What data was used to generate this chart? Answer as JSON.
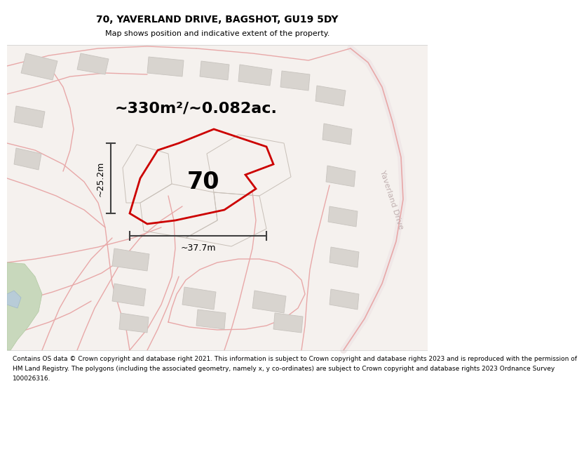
{
  "title": "70, YAVERLAND DRIVE, BAGSHOT, GU19 5DY",
  "subtitle": "Map shows position and indicative extent of the property.",
  "area_label": "~330m²/~0.082ac.",
  "number_label": "70",
  "width_label": "~37.7m",
  "height_label": "~25.2m",
  "footer_lines": [
    "Contains OS data © Crown copyright and database right 2021. This information is subject to Crown copyright and database rights 2023 and is reproduced with the permission of",
    "HM Land Registry. The polygons (including the associated geometry, namely x, y co-ordinates) are subject to Crown copyright and database rights 2023 Ordnance Survey",
    "100026316."
  ],
  "map_bg": "#f5f1ee",
  "highlight_color": "#cc0000",
  "road_color": "#e8a8a8",
  "building_color": "#d8d4cf",
  "building_edge": "#c8c4bf",
  "green_color": "#c8d8bc",
  "green_edge": "#b0c8a0",
  "dim_color": "#404040",
  "road_label_color": "#c0b0b0",
  "title_fontsize": 10,
  "subtitle_fontsize": 8,
  "area_fontsize": 16,
  "number_fontsize": 24,
  "dim_fontsize": 9,
  "road_label_fontsize": 8,
  "footer_fontsize": 6.5
}
